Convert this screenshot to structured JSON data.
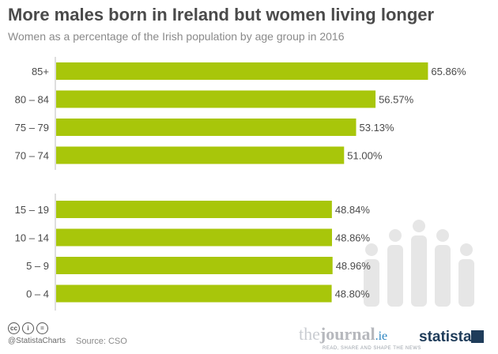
{
  "header": {
    "title": "More males born in Ireland but women living longer",
    "subtitle": "Women as a percentage of the Irish population by age group in 2016"
  },
  "chart_data": {
    "type": "bar",
    "orientation": "horizontal",
    "title": "More males born in Ireland but women living longer",
    "subtitle": "Women as a percentage of the Irish population by age group in 2016",
    "xlabel": "",
    "ylabel": "",
    "unit": "%",
    "xlim": [
      0,
      70
    ],
    "axis_break": true,
    "groups": [
      {
        "categories": [
          "85+",
          "80 – 84",
          "75 – 79",
          "70 – 74"
        ],
        "values": [
          65.86,
          56.57,
          53.13,
          51.0
        ],
        "labels": [
          "65.86%",
          "56.57%",
          "53.13%",
          "51.00%"
        ]
      },
      {
        "categories": [
          "15 – 19",
          "10 – 14",
          "5 – 9",
          "0 – 4"
        ],
        "values": [
          48.84,
          48.86,
          48.96,
          48.8
        ],
        "labels": [
          "48.84%",
          "48.86%",
          "48.96%",
          "48.80%"
        ]
      }
    ],
    "bar_color": "#a8c60a",
    "label_color": "#4a4a4a"
  },
  "footer": {
    "handle": "@StatistaCharts",
    "source": "Source: CSO",
    "journal_the": "the",
    "journal_bold": "journal",
    "journal_ie": ".ie",
    "journal_tagline": "READ, SHARE AND SHAPE THE NEWS",
    "statista": "statista",
    "cc_icons": [
      "cc-icon",
      "by-icon",
      "nd-icon"
    ]
  }
}
